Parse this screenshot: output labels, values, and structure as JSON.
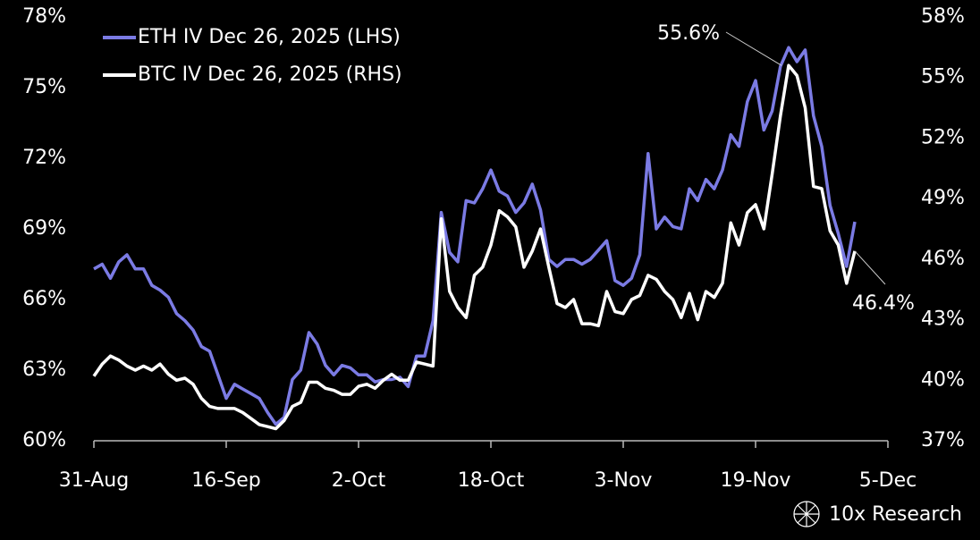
{
  "chart_data": {
    "type": "line",
    "categories": [
      "31-Aug",
      null,
      null,
      null,
      null,
      null,
      null,
      null,
      null,
      null,
      null,
      null,
      null,
      null,
      null,
      null,
      "16-Sep",
      null,
      null,
      null,
      null,
      null,
      null,
      null,
      null,
      null,
      null,
      null,
      null,
      null,
      null,
      null,
      "2-Oct",
      null,
      null,
      null,
      null,
      null,
      null,
      null,
      null,
      null,
      null,
      null,
      null,
      null,
      null,
      null,
      "18-Oct",
      null,
      null,
      null,
      null,
      null,
      null,
      null,
      null,
      null,
      null,
      null,
      null,
      null,
      null,
      null,
      "3-Nov",
      null,
      null,
      null,
      null,
      null,
      null,
      null,
      null,
      null,
      null,
      null,
      null,
      null,
      null,
      null,
      "19-Nov",
      null,
      null,
      null,
      null,
      null,
      null,
      null,
      null,
      null,
      null,
      null,
      null,
      null,
      null,
      null,
      "5-Dec"
    ],
    "series": [
      {
        "name": "ETH IV Dec 26, 2025 (LHS)",
        "color": "#7b7be4",
        "values": [
          67.3,
          67.5,
          66.9,
          67.6,
          67.9,
          67.3,
          67.3,
          66.6,
          66.4,
          66.1,
          65.4,
          65.1,
          64.7,
          64.0,
          63.8,
          62.8,
          61.8,
          62.4,
          62.2,
          62.0,
          61.8,
          61.2,
          60.7,
          61.0,
          62.6,
          63.0,
          64.6,
          64.1,
          63.2,
          62.8,
          63.2,
          63.1,
          62.8,
          62.8,
          62.5,
          62.6,
          62.6,
          62.7,
          62.3,
          63.6,
          63.6,
          65.1,
          69.7,
          68.0,
          67.6,
          70.2,
          70.1,
          70.7,
          71.5,
          70.6,
          70.4,
          69.7,
          70.1,
          70.9,
          69.8,
          67.7,
          67.4,
          67.7,
          67.7,
          67.5,
          67.7,
          68.1,
          68.5,
          66.8,
          66.6,
          66.9,
          67.9,
          72.2,
          69.0,
          69.5,
          69.1,
          69.0,
          70.7,
          70.2,
          71.1,
          70.7,
          71.5,
          73.0,
          72.5,
          74.4,
          75.3,
          73.2,
          74.0,
          75.9,
          76.7,
          76.1,
          76.6,
          73.8,
          72.5,
          70.0,
          68.8,
          67.4,
          69.3,
          null,
          null,
          null,
          null
        ]
      },
      {
        "name": "BTC IV Dec 26, 2025 (RHS)",
        "color": "#ffffff",
        "axis": "y2",
        "values": [
          40.2,
          40.8,
          41.2,
          41.0,
          40.7,
          40.5,
          40.7,
          40.5,
          40.8,
          40.3,
          40.0,
          40.1,
          39.8,
          39.1,
          38.7,
          38.6,
          38.6,
          38.6,
          38.4,
          38.1,
          37.8,
          37.7,
          37.6,
          38.0,
          38.7,
          38.9,
          39.9,
          39.9,
          39.6,
          39.5,
          39.3,
          39.3,
          39.7,
          39.8,
          39.6,
          40.0,
          40.3,
          40.0,
          40.0,
          40.9,
          40.8,
          40.7,
          48.0,
          44.4,
          43.6,
          43.1,
          45.2,
          45.6,
          46.7,
          48.4,
          48.1,
          47.6,
          45.6,
          46.4,
          47.5,
          45.6,
          43.8,
          43.6,
          44.0,
          42.8,
          42.8,
          42.7,
          44.4,
          43.4,
          43.3,
          44.0,
          44.2,
          45.2,
          45.0,
          44.4,
          44.0,
          43.1,
          44.3,
          43.0,
          44.4,
          44.1,
          44.8,
          47.8,
          46.7,
          48.3,
          48.7,
          47.5,
          50.2,
          53.1,
          55.6,
          55.1,
          53.5,
          49.6,
          49.5,
          47.4,
          46.7,
          44.8,
          46.4,
          null,
          null,
          null,
          null
        ]
      }
    ],
    "ylim": [
      60,
      78
    ],
    "yticks": [
      {
        "value": 60,
        "label": "60%"
      },
      {
        "value": 63,
        "label": "63%"
      },
      {
        "value": 66,
        "label": "66%"
      },
      {
        "value": 69,
        "label": "69%"
      },
      {
        "value": 72,
        "label": "72%"
      },
      {
        "value": 75,
        "label": "75%"
      },
      {
        "value": 78,
        "label": "78%"
      }
    ],
    "y2lim": [
      37,
      58
    ],
    "y2ticks": [
      {
        "value": 37,
        "label": "37%"
      },
      {
        "value": 40,
        "label": "40%"
      },
      {
        "value": 43,
        "label": "43%"
      },
      {
        "value": 46,
        "label": "46%"
      },
      {
        "value": 49,
        "label": "49%"
      },
      {
        "value": 52,
        "label": "52%"
      },
      {
        "value": 55,
        "label": "55%"
      },
      {
        "value": 58,
        "label": "58%"
      }
    ],
    "annotations": [
      {
        "text": "55.6%"
      },
      {
        "text": "46.4%"
      }
    ],
    "source": "10x Research",
    "legend": "top-left"
  }
}
